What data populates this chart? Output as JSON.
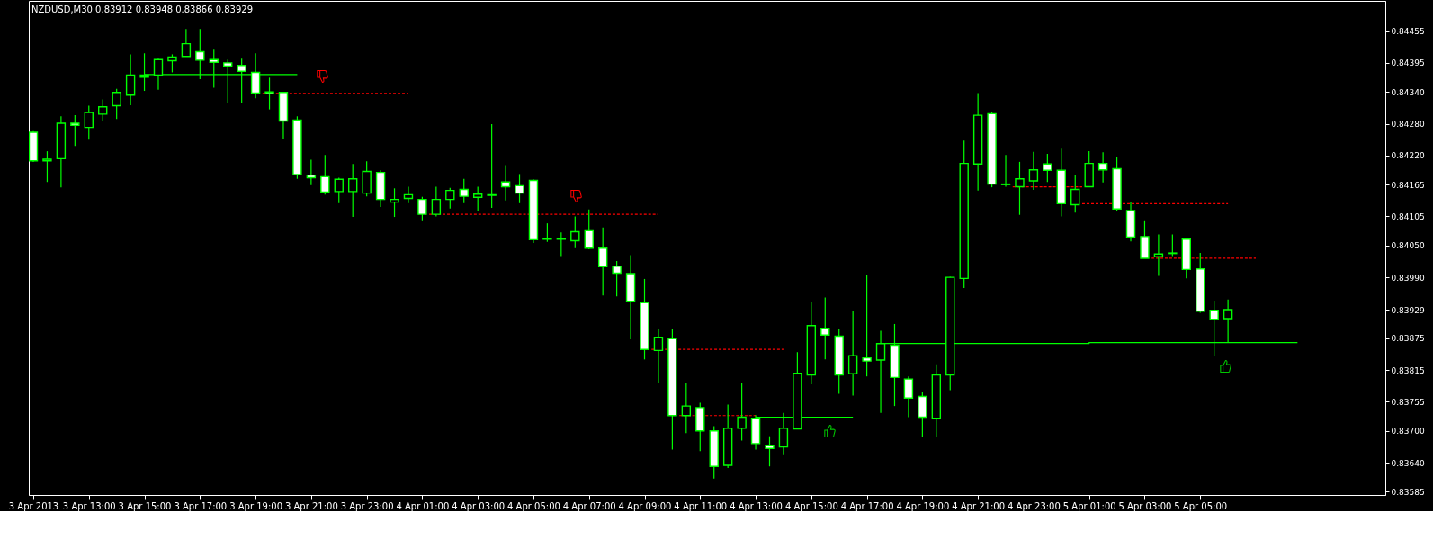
{
  "chart_data": {
    "type": "candlestick",
    "title": "NZDUSD,M30  0.83912 0.83948 0.83866 0.83929",
    "x": [
      "2013-04-03T11:00",
      "2013-04-03T11:30",
      "2013-04-03T12:00",
      "2013-04-03T12:30",
      "2013-04-03T13:00",
      "2013-04-03T13:30",
      "2013-04-03T14:00",
      "2013-04-03T14:30",
      "2013-04-03T15:00",
      "2013-04-03T15:30",
      "2013-04-03T16:00",
      "2013-04-03T16:30",
      "2013-04-03T17:00",
      "2013-04-03T17:30",
      "2013-04-03T18:00",
      "2013-04-03T18:30",
      "2013-04-03T19:00",
      "2013-04-03T19:30",
      "2013-04-03T20:00",
      "2013-04-03T20:30",
      "2013-04-03T21:00",
      "2013-04-03T21:30",
      "2013-04-03T22:00",
      "2013-04-03T22:30",
      "2013-04-03T23:00",
      "2013-04-03T23:30",
      "2013-04-04T00:00",
      "2013-04-04T00:30",
      "2013-04-04T01:00",
      "2013-04-04T01:30",
      "2013-04-04T02:00",
      "2013-04-04T02:30",
      "2013-04-04T03:00",
      "2013-04-04T03:30",
      "2013-04-04T04:00",
      "2013-04-04T04:30",
      "2013-04-04T05:00",
      "2013-04-04T05:30",
      "2013-04-04T06:00",
      "2013-04-04T06:30",
      "2013-04-04T07:00",
      "2013-04-04T07:30",
      "2013-04-04T08:00",
      "2013-04-04T08:30",
      "2013-04-04T09:00",
      "2013-04-04T09:30",
      "2013-04-04T10:00",
      "2013-04-04T10:30",
      "2013-04-04T11:00",
      "2013-04-04T11:30",
      "2013-04-04T12:00",
      "2013-04-04T12:30",
      "2013-04-04T13:00",
      "2013-04-04T13:30",
      "2013-04-04T14:00",
      "2013-04-04T14:30",
      "2013-04-04T15:00",
      "2013-04-04T15:30",
      "2013-04-04T16:00",
      "2013-04-04T16:30",
      "2013-04-04T17:00",
      "2013-04-04T17:30",
      "2013-04-04T18:00",
      "2013-04-04T18:30",
      "2013-04-04T19:00",
      "2013-04-04T19:30",
      "2013-04-04T20:00",
      "2013-04-04T20:30",
      "2013-04-04T21:00",
      "2013-04-04T21:30",
      "2013-04-04T22:00",
      "2013-04-04T22:30",
      "2013-04-04T23:00",
      "2013-04-04T23:30",
      "2013-04-05T00:00",
      "2013-04-05T00:30",
      "2013-04-05T01:00",
      "2013-04-05T01:30",
      "2013-04-05T02:00",
      "2013-04-05T02:30",
      "2013-04-05T03:00",
      "2013-04-05T03:30",
      "2013-04-05T04:00",
      "2013-04-05T04:30",
      "2013-04-05T05:00",
      "2013-04-05T05:30",
      "2013-04-05T06:00"
    ],
    "series": [
      {
        "color": "#00ff00",
        "ohlc": [
          [
            0.84264,
            0.84266,
            0.84208,
            0.8421
          ],
          [
            0.8421,
            0.84228,
            0.8417,
            0.84213
          ],
          [
            0.84214,
            0.84294,
            0.8416,
            0.84281
          ],
          [
            0.84281,
            0.84296,
            0.84238,
            0.84277
          ],
          [
            0.84273,
            0.84314,
            0.8425,
            0.84301
          ],
          [
            0.84298,
            0.84326,
            0.84286,
            0.84312
          ],
          [
            0.84314,
            0.84346,
            0.84289,
            0.84339
          ],
          [
            0.84334,
            0.84411,
            0.84315,
            0.84372
          ],
          [
            0.84372,
            0.84413,
            0.84342,
            0.84368
          ],
          [
            0.84372,
            0.84403,
            0.84344,
            0.84401
          ],
          [
            0.84399,
            0.84411,
            0.84377,
            0.84406
          ],
          [
            0.84407,
            0.84459,
            0.84407,
            0.84431
          ],
          [
            0.84416,
            0.84459,
            0.84364,
            0.844
          ],
          [
            0.84401,
            0.8442,
            0.84348,
            0.84396
          ],
          [
            0.84395,
            0.84401,
            0.8432,
            0.84389
          ],
          [
            0.8439,
            0.84403,
            0.8432,
            0.84379
          ],
          [
            0.84377,
            0.84413,
            0.84328,
            0.84338
          ],
          [
            0.8434,
            0.84367,
            0.84307,
            0.84337
          ],
          [
            0.84339,
            0.8434,
            0.84251,
            0.84285
          ],
          [
            0.84287,
            0.84294,
            0.84176,
            0.84184
          ],
          [
            0.84183,
            0.84212,
            0.84164,
            0.84178
          ],
          [
            0.8418,
            0.84221,
            0.84146,
            0.84151
          ],
          [
            0.84152,
            0.84178,
            0.8413,
            0.84175
          ],
          [
            0.84152,
            0.84204,
            0.84104,
            0.84176
          ],
          [
            0.84149,
            0.84209,
            0.84143,
            0.8419
          ],
          [
            0.84188,
            0.84192,
            0.84123,
            0.84137
          ],
          [
            0.84132,
            0.84158,
            0.84104,
            0.84137
          ],
          [
            0.84139,
            0.84161,
            0.8413,
            0.84146
          ],
          [
            0.84137,
            0.84142,
            0.84096,
            0.84109
          ],
          [
            0.84109,
            0.84161,
            0.84105,
            0.84137
          ],
          [
            0.84137,
            0.84159,
            0.8412,
            0.84154
          ],
          [
            0.84156,
            0.84176,
            0.8413,
            0.84143
          ],
          [
            0.84141,
            0.84161,
            0.84115,
            0.84147
          ],
          [
            0.84145,
            0.84279,
            0.84121,
            0.84146
          ],
          [
            0.8417,
            0.84202,
            0.84135,
            0.84161
          ],
          [
            0.84163,
            0.84185,
            0.8413,
            0.84149
          ],
          [
            0.84173,
            0.84175,
            0.84055,
            0.84061
          ],
          [
            0.84062,
            0.84092,
            0.84057,
            0.84063
          ],
          [
            0.84062,
            0.84075,
            0.8403,
            0.84063
          ],
          [
            0.84059,
            0.84105,
            0.84045,
            0.84076
          ],
          [
            0.84078,
            0.84118,
            0.84043,
            0.84045
          ],
          [
            0.84045,
            0.84084,
            0.83956,
            0.8401
          ],
          [
            0.84011,
            0.84021,
            0.83954,
            0.83998
          ],
          [
            0.83997,
            0.84032,
            0.83873,
            0.83945
          ],
          [
            0.83942,
            0.83987,
            0.83835,
            0.83854
          ],
          [
            0.83852,
            0.83893,
            0.8379,
            0.83877
          ],
          [
            0.83874,
            0.83893,
            0.83665,
            0.83729
          ],
          [
            0.83729,
            0.83791,
            0.83696,
            0.83747
          ],
          [
            0.83744,
            0.83753,
            0.83662,
            0.837
          ],
          [
            0.837,
            0.83709,
            0.8361,
            0.83633
          ],
          [
            0.83635,
            0.8375,
            0.8363,
            0.83705
          ],
          [
            0.83705,
            0.83791,
            0.83682,
            0.83726
          ],
          [
            0.83724,
            0.8373,
            0.83665,
            0.83676
          ],
          [
            0.83673,
            0.8369,
            0.83633,
            0.83667
          ],
          [
            0.8367,
            0.83734,
            0.83656,
            0.83705
          ],
          [
            0.83704,
            0.83849,
            0.83704,
            0.83809
          ],
          [
            0.83806,
            0.83943,
            0.83788,
            0.83899
          ],
          [
            0.83894,
            0.83952,
            0.83835,
            0.83881
          ],
          [
            0.83879,
            0.83893,
            0.8377,
            0.83806
          ],
          [
            0.83808,
            0.83926,
            0.83767,
            0.83842
          ],
          [
            0.83838,
            0.83994,
            0.83803,
            0.83832
          ],
          [
            0.83834,
            0.83889,
            0.83734,
            0.83865
          ],
          [
            0.83862,
            0.83902,
            0.83747,
            0.83801
          ],
          [
            0.83798,
            0.83803,
            0.83726,
            0.83762
          ],
          [
            0.83765,
            0.83773,
            0.83688,
            0.83726
          ],
          [
            0.83724,
            0.83826,
            0.83688,
            0.83806
          ],
          [
            0.83806,
            0.83991,
            0.83777,
            0.8399
          ],
          [
            0.83988,
            0.84248,
            0.8397,
            0.84205
          ],
          [
            0.84204,
            0.84338,
            0.84154,
            0.84296
          ],
          [
            0.84299,
            0.84302,
            0.8416,
            0.84166
          ],
          [
            0.84165,
            0.84221,
            0.84161,
            0.84166
          ],
          [
            0.84161,
            0.84208,
            0.84108,
            0.84176
          ],
          [
            0.84172,
            0.84227,
            0.84155,
            0.84193
          ],
          [
            0.84204,
            0.84223,
            0.8417,
            0.84192
          ],
          [
            0.84192,
            0.84233,
            0.84105,
            0.84129
          ],
          [
            0.84127,
            0.84183,
            0.84112,
            0.84156
          ],
          [
            0.84161,
            0.84228,
            0.84161,
            0.84205
          ],
          [
            0.84205,
            0.84226,
            0.84169,
            0.84193
          ],
          [
            0.84195,
            0.84217,
            0.84116,
            0.84119
          ],
          [
            0.84116,
            0.84132,
            0.84058,
            0.84066
          ],
          [
            0.84067,
            0.84096,
            0.84026,
            0.84026
          ],
          [
            0.84029,
            0.84071,
            0.83993,
            0.84034
          ],
          [
            0.84035,
            0.84071,
            0.8403,
            0.84036
          ],
          [
            0.84062,
            0.84062,
            0.83988,
            0.84005
          ],
          [
            0.84006,
            0.84036,
            0.83923,
            0.83926
          ],
          [
            0.83928,
            0.83946,
            0.83841,
            0.83911
          ],
          [
            0.83912,
            0.83948,
            0.83866,
            0.83929
          ]
        ]
      },
      {
        "type": "line",
        "color": "#00ff00",
        "line_style": "solid",
        "x": [
          "2013-04-03T15:00",
          "2013-04-03T20:30"
        ],
        "values": [
          0.84373,
          0.84373
        ]
      },
      {
        "type": "line",
        "color": "#ff0000",
        "line_style": "dashed",
        "x": [
          "2013-04-03T19:15",
          "2013-04-04T00:30"
        ],
        "values": [
          0.84337,
          0.84337
        ]
      },
      {
        "type": "line",
        "color": "#ff0000",
        "line_style": "dashed",
        "x": [
          "2013-04-04T01:15",
          "2013-04-04T09:30"
        ],
        "values": [
          0.84109,
          0.84109
        ]
      },
      {
        "type": "line",
        "color": "#ff0000",
        "line_style": "dashed",
        "x": [
          "2013-04-04T09:15",
          "2013-04-04T14:00"
        ],
        "values": [
          0.83854,
          0.83854
        ]
      },
      {
        "type": "line",
        "color": "#ff0000",
        "line_style": "dashed",
        "x": [
          "2013-04-04T10:15",
          "2013-04-04T13:00"
        ],
        "values": [
          0.83729,
          0.83729
        ]
      },
      {
        "type": "line",
        "color": "#00ff00",
        "line_style": "solid",
        "x": [
          "2013-04-04T13:00",
          "2013-04-04T16:30"
        ],
        "values": [
          0.83726,
          0.83726
        ]
      },
      {
        "type": "line",
        "color": "#00ff00",
        "line_style": "solid",
        "x": [
          "2013-04-04T17:30",
          "2013-04-05T01:00",
          "2013-04-05T01:00",
          "2013-04-05T08:30"
        ],
        "values": [
          0.83865,
          0.83865,
          0.83867,
          0.83867
        ]
      },
      {
        "type": "line",
        "color": "#ff0000",
        "line_style": "dashed",
        "x": [
          "2013-04-04T22:15",
          "2013-04-05T00:45"
        ],
        "values": [
          0.84161,
          0.84161
        ]
      },
      {
        "type": "line",
        "color": "#ff0000",
        "line_style": "dashed",
        "x": [
          "2013-04-05T00:45",
          "2013-04-05T06:00"
        ],
        "values": [
          0.84129,
          0.84129
        ]
      },
      {
        "type": "line",
        "color": "#ff0000",
        "line_style": "dashed",
        "x": [
          "2013-04-05T03:15",
          "2013-04-05T07:00"
        ],
        "values": [
          0.84026,
          0.84026
        ]
      }
    ],
    "xlim": [
      "2013-04-03T11:00",
      "2013-04-05T11:30"
    ],
    "xticks": [
      {
        "value": "2013-04-03T11:00",
        "label": "3 Apr 2013"
      },
      {
        "value": "2013-04-03T13:00",
        "label": "3 Apr 13:00"
      },
      {
        "value": "2013-04-03T15:00",
        "label": "3 Apr 15:00"
      },
      {
        "value": "2013-04-03T17:00",
        "label": "3 Apr 17:00"
      },
      {
        "value": "2013-04-03T19:00",
        "label": "3 Apr 19:00"
      },
      {
        "value": "2013-04-03T21:00",
        "label": "3 Apr 21:00"
      },
      {
        "value": "2013-04-03T23:00",
        "label": "3 Apr 23:00"
      },
      {
        "value": "2013-04-04T01:00",
        "label": "4 Apr 01:00"
      },
      {
        "value": "2013-04-04T03:00",
        "label": "4 Apr 03:00"
      },
      {
        "value": "2013-04-04T05:00",
        "label": "4 Apr 05:00"
      },
      {
        "value": "2013-04-04T07:00",
        "label": "4 Apr 07:00"
      },
      {
        "value": "2013-04-04T09:00",
        "label": "4 Apr 09:00"
      },
      {
        "value": "2013-04-04T11:00",
        "label": "4 Apr 11:00"
      },
      {
        "value": "2013-04-04T13:00",
        "label": "4 Apr 13:00"
      },
      {
        "value": "2013-04-04T15:00",
        "label": "4 Apr 15:00"
      },
      {
        "value": "2013-04-04T17:00",
        "label": "4 Apr 17:00"
      },
      {
        "value": "2013-04-04T19:00",
        "label": "4 Apr 19:00"
      },
      {
        "value": "2013-04-04T21:00",
        "label": "4 Apr 21:00"
      },
      {
        "value": "2013-04-04T23:00",
        "label": "4 Apr 23:00"
      },
      {
        "value": "2013-04-05T01:00",
        "label": "5 Apr 01:00"
      },
      {
        "value": "2013-04-05T03:00",
        "label": "5 Apr 03:00"
      },
      {
        "value": "2013-04-05T05:00",
        "label": "5 Apr 05:00"
      }
    ],
    "ylim": [
      0.83579,
      0.84512
    ],
    "yticks": [
      0.84455,
      0.84395,
      {
        "value": 0.8434,
        "label": "0.84340"
      },
      {
        "value": 0.8428,
        "label": "0.84280"
      },
      {
        "value": 0.8422,
        "label": "0.84220"
      },
      0.84165,
      0.84105,
      {
        "value": 0.8405,
        "label": "0.84050"
      },
      {
        "value": 0.8399,
        "label": "0.83990"
      },
      0.83929,
      0.83875,
      0.83815,
      0.83755,
      {
        "value": 0.837,
        "label": "0.83700"
      },
      {
        "value": 0.8364,
        "label": "0.83640"
      },
      0.83585
    ]
  }
}
